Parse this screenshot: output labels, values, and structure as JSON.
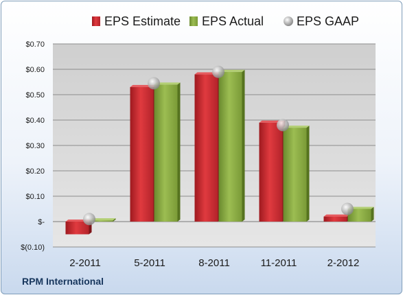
{
  "chart_data": {
    "type": "bar",
    "title": "",
    "xlabel": "",
    "ylabel": "",
    "categories": [
      "2-2011",
      "5-2011",
      "8-2011",
      "11-2011",
      "2-2012"
    ],
    "series": [
      {
        "name": "EPS Estimate",
        "kind": "bar",
        "color": "#c0272d",
        "values": [
          -0.05,
          0.53,
          0.58,
          0.39,
          0.02
        ]
      },
      {
        "name": "EPS Actual",
        "kind": "bar",
        "color": "#7fa23a",
        "values": [
          0.005,
          0.54,
          0.59,
          0.37,
          0.05
        ]
      },
      {
        "name": "EPS GAAP",
        "kind": "marker",
        "color": "#a6a6a6",
        "values": [
          0.01,
          0.545,
          0.59,
          0.38,
          0.05
        ]
      }
    ],
    "ylim": [
      -0.1,
      0.7
    ],
    "yticks": [
      -0.1,
      0,
      0.1,
      0.2,
      0.3,
      0.4,
      0.5,
      0.6,
      0.7
    ],
    "ytick_labels": [
      "$(0.10)",
      "$-",
      "$0.10",
      "$0.20",
      "$0.30",
      "$0.40",
      "$0.50",
      "$0.60",
      "$0.70"
    ],
    "grid": true,
    "legend_position": "top"
  },
  "footer": {
    "company": "RPM International"
  }
}
